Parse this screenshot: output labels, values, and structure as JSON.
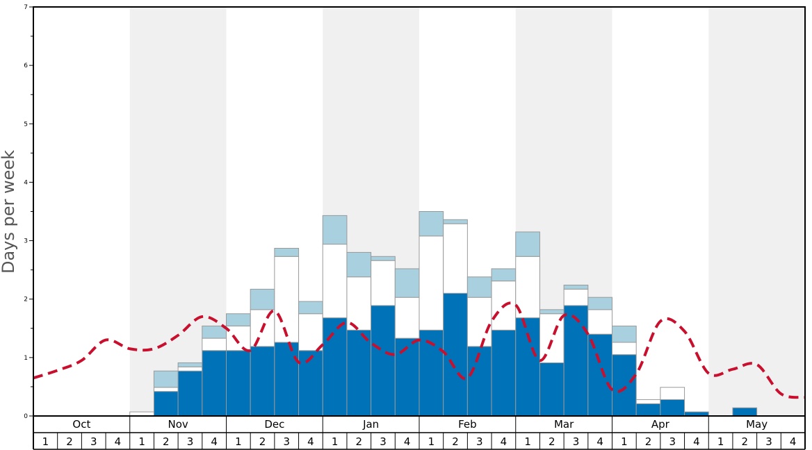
{
  "chart_data": {
    "type": "bar",
    "ylabel": "Days per week",
    "ylim": [
      0,
      7
    ],
    "y_ticks": [
      "0",
      "1",
      "2",
      "3",
      "4",
      "5",
      "6",
      "7"
    ],
    "months": [
      "Oct",
      "Nov",
      "Dec",
      "Jan",
      "Feb",
      "Mar",
      "Apr",
      "May"
    ],
    "weeks": [
      "1",
      "2",
      "3",
      "4"
    ],
    "stacked": true,
    "colors": {
      "bottom": "#0072b8",
      "middle": "#ffffff",
      "top": "#a8d0de",
      "line": "#c8102e",
      "shade": "#f0f0f0",
      "bar_edge": "#999999"
    },
    "series": [
      {
        "values": [
          0,
          0,
          0,
          0,
          0,
          0.42,
          0.77,
          1.12,
          1.12,
          1.19,
          1.26,
          1.12,
          1.68,
          1.47,
          1.89,
          1.33,
          1.47,
          2.1,
          1.19,
          1.47,
          1.68,
          0.91,
          1.89,
          1.4,
          1.05,
          0.21,
          0.28,
          0.07,
          0,
          0.14,
          0,
          0
        ]
      },
      {
        "values": [
          0,
          0,
          0,
          0,
          0.07,
          0.07,
          0.07,
          0.21,
          0.42,
          0.63,
          1.47,
          0.63,
          1.26,
          0.91,
          0.77,
          0.7,
          1.61,
          1.19,
          0.84,
          0.84,
          1.05,
          0.84,
          0.28,
          0.42,
          0.21,
          0.07,
          0.21,
          0,
          0,
          0,
          0,
          0
        ]
      },
      {
        "values": [
          0,
          0,
          0,
          0,
          0,
          0.28,
          0.07,
          0.21,
          0.21,
          0.35,
          0.14,
          0.21,
          0.49,
          0.42,
          0.07,
          0.49,
          0.42,
          0.07,
          0.35,
          0.21,
          0.42,
          0.07,
          0.07,
          0.21,
          0.28,
          0,
          0,
          0,
          0,
          0,
          0,
          0
        ]
      }
    ],
    "line": {
      "style": "dashed",
      "values": [
        0.65,
        0.78,
        0.95,
        1.3,
        1.15,
        1.15,
        1.38,
        1.7,
        1.5,
        1.12,
        1.8,
        0.92,
        1.22,
        1.6,
        1.25,
        1.05,
        1.3,
        1.1,
        0.65,
        1.62,
        1.9,
        0.95,
        1.72,
        1.4,
        0.45,
        0.72,
        1.62,
        1.45,
        0.73,
        0.8,
        0.88,
        0.38,
        0.32
      ]
    }
  }
}
